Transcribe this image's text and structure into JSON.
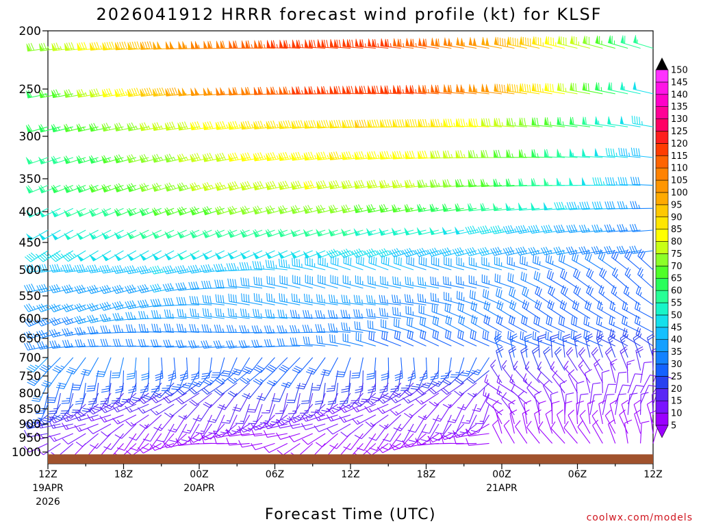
{
  "chart_data": {
    "type": "wind-barb-time-height",
    "title": "2026041912 HRRR forecast wind profile (kt) for KLSF",
    "xlabel": "Forecast Time (UTC)",
    "credit": "coolwx.com/models",
    "y_ticks": [
      200,
      250,
      300,
      350,
      400,
      450,
      500,
      550,
      600,
      650,
      700,
      750,
      800,
      850,
      900,
      950,
      1000
    ],
    "x_ticks": [
      {
        "hour": 0,
        "label": "12Z",
        "date": "19APR",
        "year": "2026"
      },
      {
        "hour": 6,
        "label": "18Z",
        "date": "",
        "year": ""
      },
      {
        "hour": 12,
        "label": "00Z",
        "date": "20APR",
        "year": ""
      },
      {
        "hour": 18,
        "label": "06Z",
        "date": "",
        "year": ""
      },
      {
        "hour": 24,
        "label": "12Z",
        "date": "",
        "year": ""
      },
      {
        "hour": 30,
        "label": "18Z",
        "date": "",
        "year": ""
      },
      {
        "hour": 36,
        "label": "00Z",
        "date": "21APR",
        "year": ""
      },
      {
        "hour": 42,
        "label": "06Z",
        "date": "",
        "year": ""
      },
      {
        "hour": 48,
        "label": "12Z",
        "date": "",
        "year": ""
      }
    ],
    "xlim_hours": [
      0,
      48
    ],
    "ylim_hPa": [
      1000,
      200
    ],
    "colorbar": {
      "levels": [
        5,
        10,
        15,
        20,
        25,
        30,
        35,
        40,
        45,
        50,
        55,
        60,
        65,
        70,
        75,
        80,
        85,
        90,
        95,
        100,
        105,
        110,
        115,
        120,
        125,
        130,
        135,
        140,
        145,
        150
      ],
      "colors": [
        "#9b00ff",
        "#7a14ff",
        "#5a28f5",
        "#2841f0",
        "#1462ff",
        "#1482ff",
        "#14a0ff",
        "#14c0ff",
        "#14e0ec",
        "#18f5c8",
        "#28ff96",
        "#28ff5a",
        "#50ff28",
        "#8cff28",
        "#c8ff14",
        "#ffff00",
        "#ffe600",
        "#ffc800",
        "#ffaa00",
        "#ff9600",
        "#ff8200",
        "#ff6400",
        "#ff3c00",
        "#ff1e1e",
        "#ff0064",
        "#ff0096",
        "#ff00c8",
        "#ff14e6",
        "#ff32ff",
        "#ff64ff"
      ]
    },
    "profile_kt": {
      "levels_hPa": [
        215,
        255,
        290,
        325,
        360,
        395,
        430,
        465,
        500,
        535,
        570,
        600,
        635,
        670,
        700,
        735,
        770,
        800,
        835,
        870,
        900,
        935,
        970
      ],
      "speed_at_start": [
        70,
        62,
        60,
        55,
        58,
        50,
        48,
        45,
        42,
        38,
        36,
        34,
        33,
        34,
        35,
        33,
        30,
        25,
        25,
        24,
        20,
        15,
        12
      ],
      "speed_peak": [
        118,
        118,
        90,
        85,
        80,
        72,
        58,
        50,
        45,
        40,
        38,
        36,
        34,
        32,
        30,
        26,
        22,
        18,
        16,
        14,
        12,
        10,
        8
      ],
      "peak_hour": [
        24,
        26,
        26,
        24,
        22,
        20,
        16,
        12,
        10,
        10,
        10,
        10,
        10,
        8,
        8,
        8,
        8,
        8,
        8,
        6,
        6,
        6,
        6
      ],
      "speed_at_end": [
        55,
        48,
        45,
        40,
        38,
        34,
        32,
        30,
        28,
        26,
        26,
        26,
        26,
        24,
        22,
        18,
        12,
        10,
        10,
        10,
        8,
        8,
        8
      ]
    },
    "terrain_pressure_hPa": 1008
  }
}
